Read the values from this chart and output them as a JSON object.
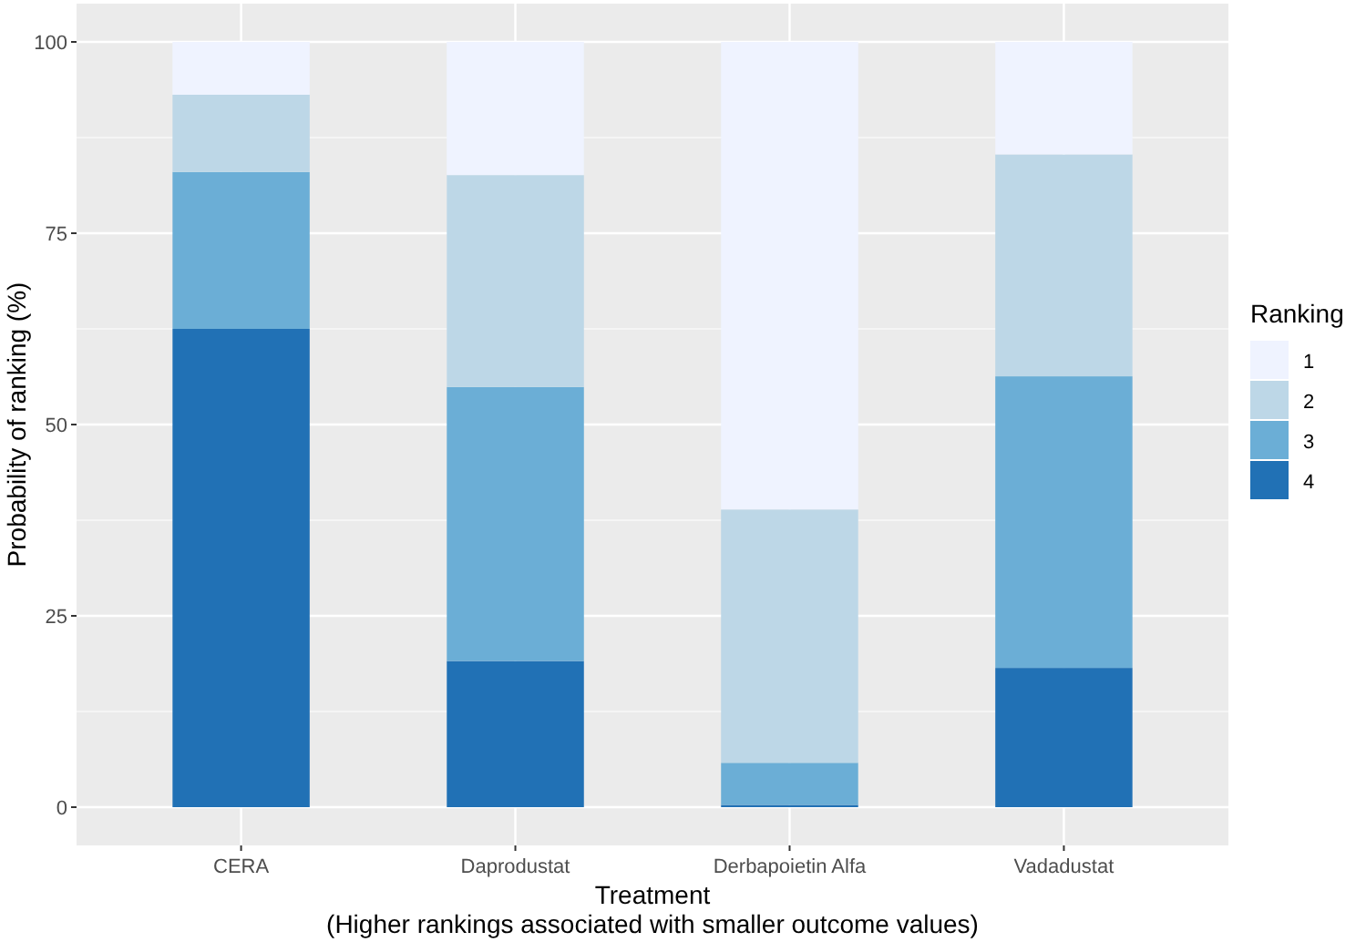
{
  "chart_data": {
    "type": "bar",
    "stacked": true,
    "xlabel": "Treatment\n(Higher rankings associated with smaller outcome values)",
    "ylabel": "Probability of ranking (%)",
    "legend_title": "Ranking",
    "legend": "right",
    "categories": [
      "CERA",
      "Daprodustat",
      "Derbapoietin Alfa",
      "Vadadustat"
    ],
    "series": [
      {
        "name": "4",
        "color": "#2171b5",
        "values": [
          62.5,
          19.1,
          0.3,
          18.2
        ]
      },
      {
        "name": "3",
        "color": "#6baed6",
        "values": [
          20.5,
          35.8,
          5.5,
          38.1
        ]
      },
      {
        "name": "2",
        "color": "#bdd7e7",
        "values": [
          10.1,
          27.7,
          33.1,
          29.0
        ]
      },
      {
        "name": "1",
        "color": "#eff3ff",
        "values": [
          6.9,
          17.4,
          61.1,
          14.7
        ]
      }
    ],
    "ylim": [
      -5,
      105
    ],
    "yticks": [
      0,
      25,
      50,
      75,
      100
    ],
    "grid": true
  }
}
